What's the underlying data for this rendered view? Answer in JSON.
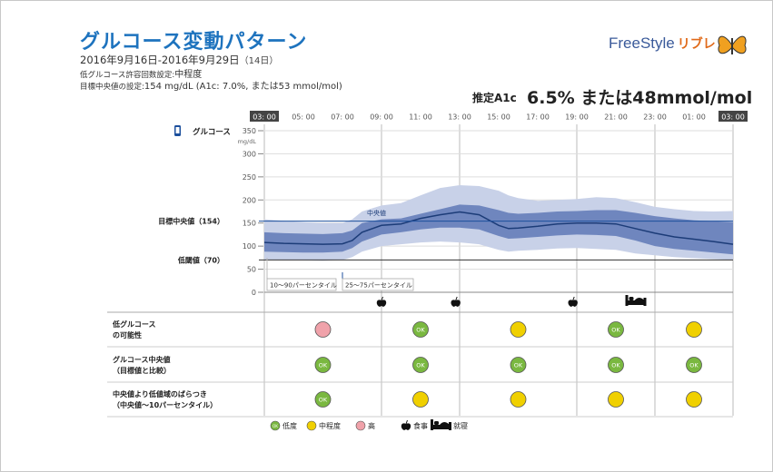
{
  "header": {
    "title": "グルコース変動パターン",
    "date_range": "2016年9月16日-2016年9月29日",
    "days": "（14日）",
    "low_risk_setting_label": "低グルコース許容回数設定:",
    "low_risk_setting_value": "中程度",
    "target_median_label": "目標中央値の設定:",
    "target_median_value": "154 mg/dL (A1c: 7.0%, または53 mmol/mol)"
  },
  "logo": {
    "text": "FreeStyle",
    "jp": "リブレ"
  },
  "a1c": {
    "label": "推定A1c",
    "value": "6.5% または48mmol/mol"
  },
  "chart_data": {
    "type": "area",
    "series_label": "グルコース",
    "ylabel": "mg/dL",
    "ylim": [
      0,
      350
    ],
    "yticks": [
      0,
      50,
      100,
      150,
      200,
      250,
      300,
      350
    ],
    "xticks": [
      "03: 00",
      "05: 00",
      "07: 00",
      "09: 00",
      "11: 00",
      "13: 00",
      "15: 00",
      "17: 00",
      "19: 00",
      "21: 00",
      "23: 00",
      "01: 00",
      "03: 00"
    ],
    "reference_lines": [
      {
        "name": "目標中央値（154）",
        "value": 154
      },
      {
        "name": "低閾値（70）",
        "value": 70
      }
    ],
    "median_annotation": "中央値",
    "hours": [
      3,
      4,
      5,
      6,
      7,
      7.5,
      8,
      9,
      10,
      11,
      12,
      13,
      14,
      15,
      15.5,
      16,
      17,
      18,
      19,
      20,
      21,
      22,
      23,
      24,
      25,
      26,
      27
    ],
    "median": [
      108,
      106,
      105,
      104,
      105,
      112,
      130,
      145,
      148,
      160,
      168,
      174,
      168,
      145,
      138,
      139,
      143,
      148,
      150,
      150,
      148,
      138,
      128,
      120,
      115,
      110,
      104
    ],
    "p25": [
      88,
      87,
      86,
      86,
      88,
      96,
      110,
      125,
      130,
      136,
      140,
      140,
      136,
      122,
      116,
      117,
      120,
      123,
      125,
      124,
      122,
      112,
      100,
      94,
      90,
      86,
      82
    ],
    "p75": [
      130,
      128,
      127,
      126,
      128,
      134,
      150,
      158,
      160,
      170,
      180,
      190,
      188,
      178,
      172,
      170,
      172,
      175,
      176,
      178,
      178,
      172,
      165,
      160,
      156,
      154,
      152
    ],
    "p10": [
      70,
      69,
      69,
      68,
      70,
      76,
      88,
      100,
      104,
      108,
      110,
      108,
      104,
      92,
      88,
      90,
      92,
      95,
      96,
      94,
      92,
      84,
      80,
      76,
      74,
      72,
      70
    ],
    "p90": [
      158,
      155,
      152,
      150,
      150,
      158,
      175,
      188,
      193,
      210,
      226,
      232,
      230,
      220,
      210,
      204,
      198,
      200,
      202,
      206,
      204,
      195,
      185,
      180,
      176,
      175,
      176
    ],
    "legend_boxes": [
      "10～90パーセンタイル",
      "25～75パーセンタイル"
    ],
    "event_markers": [
      {
        "hour": 9.0,
        "icon": "apple-icon"
      },
      {
        "hour": 12.8,
        "icon": "apple-icon"
      },
      {
        "hour": 18.8,
        "icon": "apple-icon"
      },
      {
        "hour": 22.0,
        "icon": "bed-icon"
      }
    ],
    "time_blocks": [
      {
        "start": 3,
        "end": 9
      },
      {
        "start": 9,
        "end": 13
      },
      {
        "start": 13,
        "end": 19
      },
      {
        "start": 19,
        "end": 23
      },
      {
        "start": 23,
        "end": 27
      }
    ],
    "rows": [
      {
        "label1": "低グルコース",
        "label2": "の可能性",
        "levels": [
          "high",
          "low",
          "medium",
          "low",
          "medium"
        ]
      },
      {
        "label1": "グルコース中央値",
        "label2": "（目標値と比較）",
        "levels": [
          "low",
          "low",
          "low",
          "low",
          "low"
        ]
      },
      {
        "label1": "中央値より低値域のばらつき",
        "label2": "（中央値～10パーセンタイル）",
        "levels": [
          "low",
          "medium",
          "medium",
          "medium",
          "medium"
        ]
      }
    ],
    "ok_text": "OK",
    "legend": [
      {
        "kind": "low",
        "label": "低度"
      },
      {
        "kind": "medium",
        "label": "中程度"
      },
      {
        "kind": "high",
        "label": "高"
      },
      {
        "kind": "apple",
        "label": "食事"
      },
      {
        "kind": "bed",
        "label": "就寝"
      }
    ]
  },
  "colors": {
    "title": "#1e73be",
    "median_line": "#1c3c78",
    "iqr_band": "#6f86be",
    "outer_band": "#c8d1e8",
    "ok_green": "#7ab840",
    "medium_yellow": "#f0d000",
    "high_pink": "#f0a2aa"
  }
}
